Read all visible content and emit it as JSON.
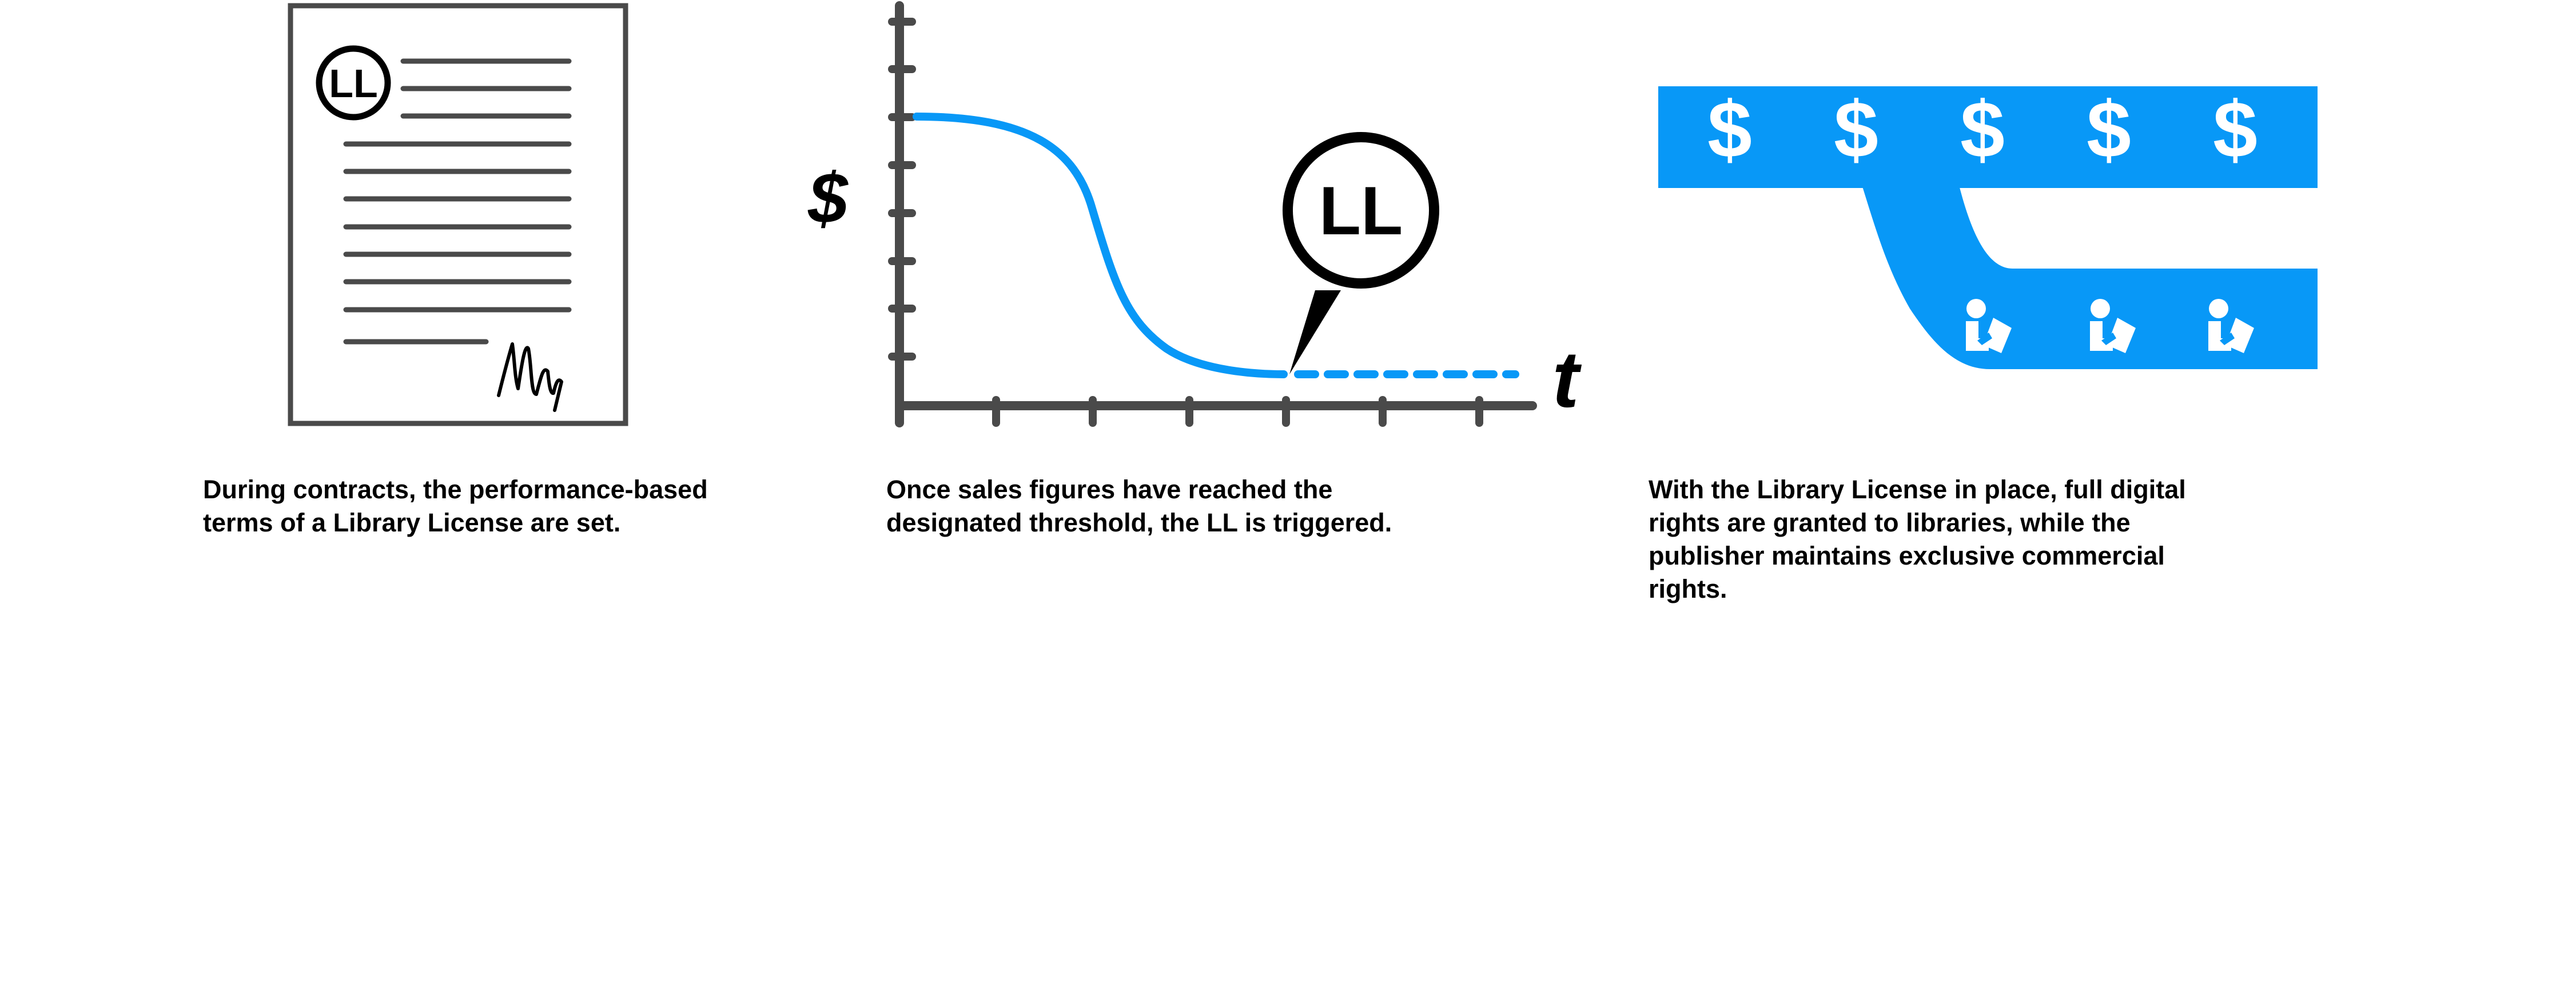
{
  "colors": {
    "accent_blue": "#0898f7",
    "doc_gray": "#4a4a4a",
    "ink": "#000000"
  },
  "panel1": {
    "badge": "LL",
    "caption": "During contracts, the performance-based terms of a Library License are set."
  },
  "panel2": {
    "y_axis_label": "$",
    "x_axis_label": "t",
    "callout": "LL",
    "caption": "Once sales figures have reached the designated threshold, the LL is triggered."
  },
  "panel3": {
    "dollar_symbol": "$",
    "caption": "With the Library License in place, full digital rights are granted to libraries, while the publisher maintains exclusive commercial rights."
  },
  "icons": {
    "panel1": [
      "document-icon",
      "signature-icon"
    ],
    "panel3": [
      "dollar-icon",
      "library-reader-icon"
    ]
  }
}
